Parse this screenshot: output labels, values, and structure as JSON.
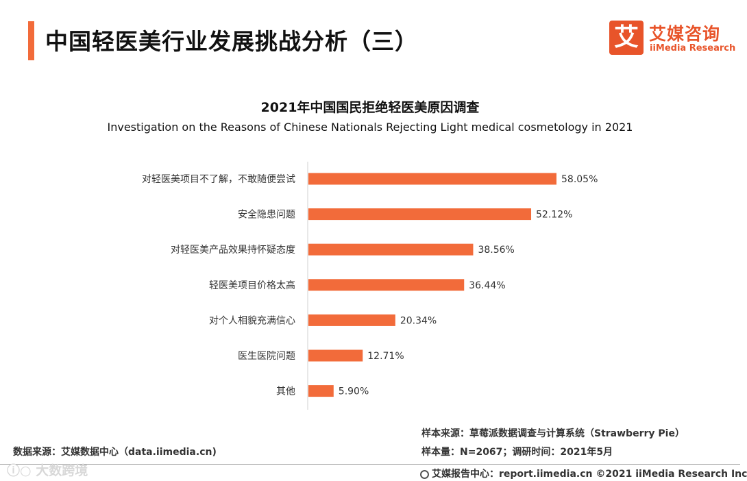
{
  "header": {
    "title": "中国轻医美行业发展挑战分析（三）",
    "logo_mark": "艾",
    "logo_cn": "艾媒咨询",
    "logo_en": "iiMedia Research"
  },
  "colors": {
    "accent": "#f26b3a",
    "bar": "#f26b3a"
  },
  "chart_data": {
    "type": "bar",
    "orientation": "horizontal",
    "title": "2021年中国国民拒绝轻医美原因调查",
    "subtitle": "Investigation on the Reasons of Chinese Nationals Rejecting Light medical cosmetology in 2021",
    "categories": [
      "对轻医美项目不了解，不敢随便尝试",
      "安全隐患问题",
      "对轻医美产品效果持怀疑态度",
      "轻医美项目价格太高",
      "对个人相貌充满信心",
      "医生医院问题",
      "其他"
    ],
    "values": [
      58.05,
      52.12,
      38.56,
      36.44,
      20.34,
      12.71,
      5.9
    ],
    "value_labels": [
      "58.05%",
      "52.12%",
      "38.56%",
      "36.44%",
      "20.34%",
      "12.71%",
      "5.90%"
    ],
    "unit": "%",
    "xlim": [
      0,
      100
    ],
    "xlabel": "",
    "ylabel": "",
    "grid": false
  },
  "footer": {
    "data_source": "数据来源：艾媒数据中心（data.iimedia.cn)",
    "sample_source": "样本来源：草莓派数据调查与计算系统（Strawberry Pie）",
    "sample_info": "样本量：N=2067；调研时间：2021年5月",
    "report_center": "艾媒报告中心：report.iimedia.cn   ©2021  iiMedia Research  Inc",
    "watermark": "ⓘ○ 大数跨境"
  }
}
